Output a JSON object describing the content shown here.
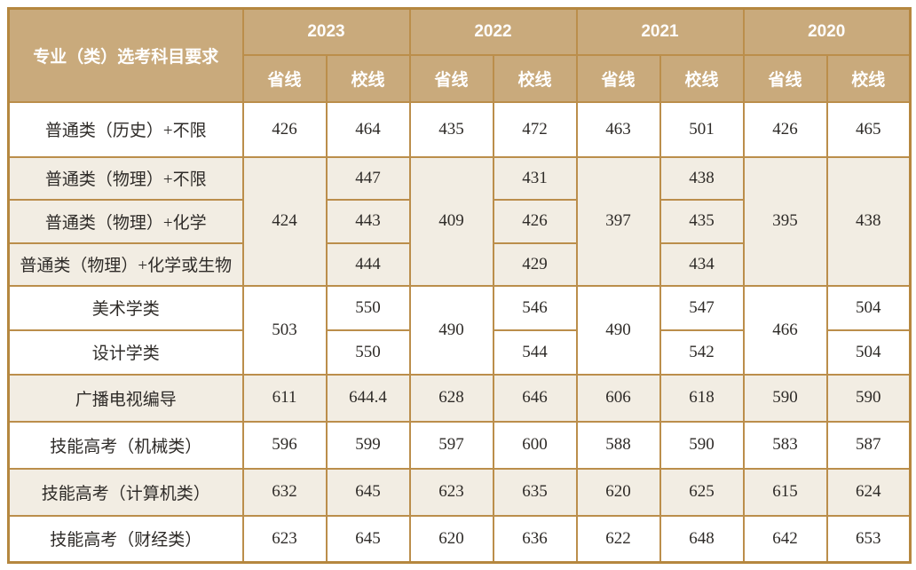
{
  "table": {
    "corner_header": "专业（类）选考科目要求",
    "years": [
      "2023",
      "2022",
      "2021",
      "2020"
    ],
    "sub_headers": [
      "省线",
      "校线"
    ],
    "rows": [
      {
        "label": "普通类（历史）+不限",
        "shade": "white",
        "cells": [
          {
            "v": "426"
          },
          {
            "v": "464"
          },
          {
            "v": "435"
          },
          {
            "v": "472"
          },
          {
            "v": "463"
          },
          {
            "v": "501"
          },
          {
            "v": "426"
          },
          {
            "v": "465"
          }
        ]
      },
      {
        "label": "普通类（物理）+不限",
        "shade": "cream",
        "cells": [
          {
            "v": "424",
            "rs": 3
          },
          {
            "v": "447"
          },
          {
            "v": "409",
            "rs": 3
          },
          {
            "v": "431"
          },
          {
            "v": "397",
            "rs": 3
          },
          {
            "v": "438"
          },
          {
            "v": "395",
            "rs": 3
          },
          {
            "v": "438",
            "rs": 3
          }
        ]
      },
      {
        "label": "普通类（物理）+化学",
        "shade": "cream",
        "cells": [
          {
            "v": "443"
          },
          {
            "v": "426"
          },
          {
            "v": "435"
          }
        ]
      },
      {
        "label": "普通类（物理）+化学或生物",
        "shade": "cream",
        "cells": [
          {
            "v": "444"
          },
          {
            "v": "429"
          },
          {
            "v": "434"
          }
        ]
      },
      {
        "label": "美术学类",
        "shade": "white",
        "cells": [
          {
            "v": "503",
            "rs": 2
          },
          {
            "v": "550"
          },
          {
            "v": "490",
            "rs": 2
          },
          {
            "v": "546"
          },
          {
            "v": "490",
            "rs": 2
          },
          {
            "v": "547"
          },
          {
            "v": "466",
            "rs": 2
          },
          {
            "v": "504"
          }
        ]
      },
      {
        "label": "设计学类",
        "shade": "white",
        "cells": [
          {
            "v": "550"
          },
          {
            "v": "544"
          },
          {
            "v": "542"
          },
          {
            "v": "504"
          }
        ]
      },
      {
        "label": "广播电视编导",
        "shade": "cream",
        "cells": [
          {
            "v": "611"
          },
          {
            "v": "644.4"
          },
          {
            "v": "628"
          },
          {
            "v": "646"
          },
          {
            "v": "606"
          },
          {
            "v": "618"
          },
          {
            "v": "590"
          },
          {
            "v": "590"
          }
        ]
      },
      {
        "label": "技能高考（机械类）",
        "shade": "white",
        "cells": [
          {
            "v": "596"
          },
          {
            "v": "599"
          },
          {
            "v": "597"
          },
          {
            "v": "600"
          },
          {
            "v": "588"
          },
          {
            "v": "590"
          },
          {
            "v": "583"
          },
          {
            "v": "587"
          }
        ]
      },
      {
        "label": "技能高考（计算机类）",
        "shade": "cream",
        "cells": [
          {
            "v": "632"
          },
          {
            "v": "645"
          },
          {
            "v": "623"
          },
          {
            "v": "635"
          },
          {
            "v": "620"
          },
          {
            "v": "625"
          },
          {
            "v": "615"
          },
          {
            "v": "624"
          }
        ]
      },
      {
        "label": "技能高考（财经类）",
        "shade": "white",
        "cells": [
          {
            "v": "623"
          },
          {
            "v": "645"
          },
          {
            "v": "620"
          },
          {
            "v": "636"
          },
          {
            "v": "622"
          },
          {
            "v": "648"
          },
          {
            "v": "642"
          },
          {
            "v": "653"
          }
        ]
      }
    ]
  },
  "colors": {
    "header_bg": "#c9aa7c",
    "header_text": "#ffffff",
    "border": "#bb8e4b",
    "row_cream": "#f2ede3",
    "row_white": "#ffffff",
    "body_text": "#2e2b28"
  }
}
